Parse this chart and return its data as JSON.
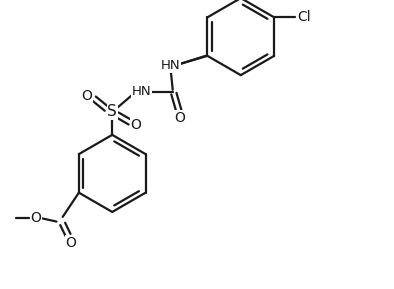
{
  "bg_color": "#ffffff",
  "line_color": "#1a1a1a",
  "lw": 1.6,
  "figsize": [
    3.94,
    2.89
  ],
  "dpi": 100,
  "xlim": [
    0,
    10
  ],
  "ylim": [
    0,
    7.5
  ]
}
